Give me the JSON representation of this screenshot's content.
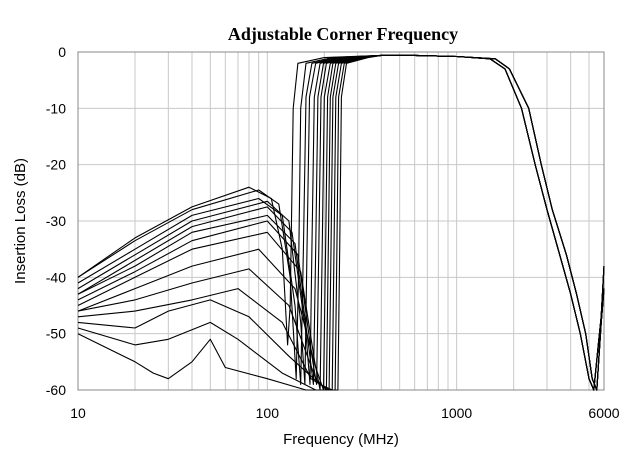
{
  "chart_data": {
    "type": "line",
    "title": "Adjustable Corner Frequency",
    "xlabel": "Frequency (MHz)",
    "ylabel": "Insertion Loss (dB)",
    "x_scale": "log",
    "xlim": [
      10,
      6000
    ],
    "ylim": [
      -60,
      0
    ],
    "x_ticks": [
      "10",
      "100",
      "1000",
      "6000"
    ],
    "x_tick_values": [
      10,
      100,
      1000,
      6000
    ],
    "y_ticks": [
      "0",
      "-10",
      "-20",
      "-30",
      "-40",
      "-50",
      "-60"
    ],
    "y_tick_values": [
      0,
      -10,
      -20,
      -30,
      -40,
      -50,
      -60
    ],
    "grid": true,
    "line_color": "#000000",
    "grid_color": "#c8c8c8",
    "upper_band": [
      [
        [
          600,
          -0.6
        ],
        [
          1000,
          -0.8
        ],
        [
          1500,
          -1.2
        ],
        [
          1800,
          -3
        ],
        [
          2200,
          -10
        ],
        [
          2600,
          -20
        ],
        [
          3000,
          -28
        ],
        [
          3500,
          -36
        ],
        [
          4000,
          -43
        ],
        [
          4500,
          -50
        ],
        [
          5000,
          -58
        ],
        [
          5300,
          -60
        ],
        [
          5600,
          -52
        ],
        [
          5800,
          -47
        ],
        [
          6000,
          -38
        ]
      ],
      [
        [
          600,
          -0.6
        ],
        [
          1000,
          -0.8
        ],
        [
          1600,
          -1.2
        ],
        [
          1900,
          -3
        ],
        [
          2400,
          -10
        ],
        [
          2800,
          -20
        ],
        [
          3200,
          -28
        ],
        [
          3800,
          -36
        ],
        [
          4300,
          -43
        ],
        [
          4800,
          -50
        ],
        [
          5200,
          -58
        ],
        [
          5500,
          -60
        ],
        [
          5800,
          -48
        ],
        [
          6000,
          -42
        ]
      ]
    ],
    "series": [
      {
        "points": [
          [
            10,
            -40
          ],
          [
            20,
            -33
          ],
          [
            40,
            -27.5
          ],
          [
            80,
            -24
          ],
          [
            105,
            -26
          ],
          [
            120,
            -35
          ],
          [
            128,
            -52
          ],
          [
            132,
            -45
          ],
          [
            137,
            -10
          ],
          [
            145,
            -2
          ],
          [
            200,
            -1
          ],
          [
            400,
            -0.6
          ]
        ]
      },
      {
        "points": [
          [
            10,
            -40
          ],
          [
            20,
            -33.5
          ],
          [
            40,
            -28
          ],
          [
            90,
            -24.5
          ],
          [
            115,
            -27
          ],
          [
            132,
            -40
          ],
          [
            142,
            -58
          ],
          [
            146,
            -40
          ],
          [
            150,
            -10
          ],
          [
            160,
            -2
          ],
          [
            220,
            -1
          ],
          [
            400,
            -0.6
          ]
        ]
      },
      {
        "points": [
          [
            10,
            -41
          ],
          [
            20,
            -35
          ],
          [
            40,
            -29
          ],
          [
            90,
            -26
          ],
          [
            120,
            -29
          ],
          [
            140,
            -45
          ],
          [
            150,
            -59
          ],
          [
            155,
            -35
          ],
          [
            160,
            -8
          ],
          [
            172,
            -2
          ],
          [
            230,
            -1
          ],
          [
            400,
            -0.6
          ]
        ]
      },
      {
        "points": [
          [
            10,
            -42
          ],
          [
            20,
            -36
          ],
          [
            40,
            -30
          ],
          [
            100,
            -26.5
          ],
          [
            130,
            -30
          ],
          [
            150,
            -48
          ],
          [
            158,
            -59
          ],
          [
            162,
            -35
          ],
          [
            167,
            -8
          ],
          [
            180,
            -2
          ],
          [
            240,
            -1
          ],
          [
            400,
            -0.6
          ]
        ]
      },
      {
        "points": [
          [
            10,
            -43
          ],
          [
            20,
            -37
          ],
          [
            40,
            -31
          ],
          [
            100,
            -27.5
          ],
          [
            135,
            -32
          ],
          [
            160,
            -50
          ],
          [
            168,
            -59
          ],
          [
            172,
            -35
          ],
          [
            177,
            -8
          ],
          [
            190,
            -2
          ],
          [
            250,
            -1
          ],
          [
            400,
            -0.6
          ]
        ]
      },
      {
        "points": [
          [
            10,
            -43
          ],
          [
            20,
            -38
          ],
          [
            40,
            -32
          ],
          [
            100,
            -29
          ],
          [
            140,
            -34
          ],
          [
            165,
            -52
          ],
          [
            175,
            -59
          ],
          [
            180,
            -35
          ],
          [
            185,
            -8
          ],
          [
            198,
            -2
          ],
          [
            260,
            -1
          ],
          [
            400,
            -0.6
          ]
        ]
      },
      {
        "points": [
          [
            10,
            -44
          ],
          [
            20,
            -39
          ],
          [
            40,
            -33.5
          ],
          [
            100,
            -30
          ],
          [
            145,
            -36
          ],
          [
            172,
            -54
          ],
          [
            182,
            -59
          ],
          [
            187,
            -35
          ],
          [
            192,
            -8
          ],
          [
            205,
            -2
          ],
          [
            270,
            -1
          ],
          [
            400,
            -0.6
          ]
        ]
      },
      {
        "points": [
          [
            10,
            -45
          ],
          [
            20,
            -40
          ],
          [
            40,
            -35
          ],
          [
            100,
            -32
          ],
          [
            150,
            -39
          ],
          [
            178,
            -55
          ],
          [
            190,
            -60
          ],
          [
            195,
            -35
          ],
          [
            200,
            -8
          ],
          [
            215,
            -2
          ],
          [
            280,
            -1
          ],
          [
            400,
            -0.6
          ]
        ]
      },
      {
        "points": [
          [
            10,
            -46
          ],
          [
            20,
            -42
          ],
          [
            40,
            -38
          ],
          [
            90,
            -35
          ],
          [
            140,
            -42
          ],
          [
            180,
            -56
          ],
          [
            198,
            -60
          ],
          [
            203,
            -35
          ],
          [
            208,
            -8
          ],
          [
            222,
            -2
          ],
          [
            290,
            -1
          ],
          [
            400,
            -0.6
          ]
        ]
      },
      {
        "points": [
          [
            10,
            -46
          ],
          [
            20,
            -44
          ],
          [
            40,
            -41
          ],
          [
            80,
            -38.5
          ],
          [
            130,
            -45
          ],
          [
            180,
            -58
          ],
          [
            205,
            -60
          ],
          [
            210,
            -35
          ],
          [
            215,
            -8
          ],
          [
            230,
            -2
          ],
          [
            300,
            -1
          ],
          [
            400,
            -0.6
          ]
        ]
      },
      {
        "points": [
          [
            10,
            -47
          ],
          [
            20,
            -46
          ],
          [
            40,
            -44
          ],
          [
            70,
            -42
          ],
          [
            120,
            -48
          ],
          [
            170,
            -58
          ],
          [
            212,
            -60
          ],
          [
            217,
            -35
          ],
          [
            222,
            -8
          ],
          [
            238,
            -2
          ],
          [
            310,
            -1
          ],
          [
            400,
            -0.6
          ]
        ]
      },
      {
        "points": [
          [
            10,
            -48
          ],
          [
            20,
            -49
          ],
          [
            30,
            -46
          ],
          [
            50,
            -44
          ],
          [
            80,
            -47
          ],
          [
            130,
            -54
          ],
          [
            190,
            -59
          ],
          [
            220,
            -60
          ],
          [
            225,
            -35
          ],
          [
            230,
            -8
          ],
          [
            246,
            -2
          ],
          [
            320,
            -1
          ],
          [
            400,
            -0.6
          ]
        ]
      },
      {
        "points": [
          [
            10,
            -49
          ],
          [
            20,
            -52
          ],
          [
            30,
            -51
          ],
          [
            50,
            -48
          ],
          [
            70,
            -51
          ],
          [
            120,
            -57
          ],
          [
            180,
            -60
          ],
          [
            228,
            -60
          ],
          [
            233,
            -35
          ],
          [
            238,
            -8
          ],
          [
            255,
            -2
          ],
          [
            330,
            -1
          ],
          [
            400,
            -0.6
          ]
        ]
      },
      {
        "points": [
          [
            10,
            -50
          ],
          [
            20,
            -55
          ],
          [
            25,
            -57
          ],
          [
            30,
            -58
          ],
          [
            40,
            -55
          ],
          [
            50,
            -51
          ],
          [
            60,
            -56
          ],
          [
            100,
            -58
          ],
          [
            160,
            -60
          ],
          [
            236,
            -60
          ],
          [
            241,
            -35
          ],
          [
            246,
            -8
          ],
          [
            262,
            -2
          ],
          [
            340,
            -1
          ],
          [
            400,
            -0.6
          ]
        ]
      }
    ]
  }
}
